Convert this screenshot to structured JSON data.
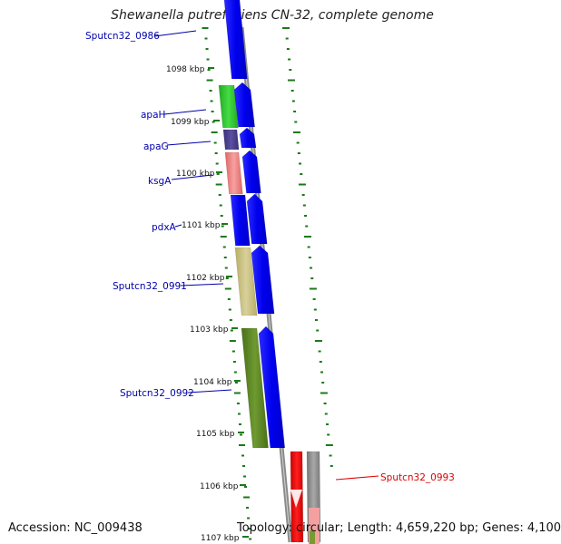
{
  "title": "Shewanella putrefaciens CN-32, complete genome",
  "accession": "Accession: NC_009438",
  "topology": "Topology: circular; Length: 4,659,220 bp; Genes: 4,100",
  "colors": {
    "blue_cds": "#0000ee",
    "label_blue": "#0000aa",
    "label_red": "#dd0000",
    "tick_green": "#1a7a1a",
    "backbone_gray": "#8a8a8a"
  },
  "ticks": [
    "1098 kbp",
    "1099 kbp",
    "1100 kbp",
    "1101 kbp",
    "1102 kbp",
    "1103 kbp",
    "1104 kbp",
    "1105 kbp",
    "1106 kbp",
    "1107 kbp"
  ],
  "gene_labels": [
    {
      "text": "Sputcn32_0986",
      "color": "label_blue"
    },
    {
      "text": "apaH",
      "color": "label_blue"
    },
    {
      "text": "apaG",
      "color": "label_blue"
    },
    {
      "text": "ksgA",
      "color": "label_blue"
    },
    {
      "text": "pdxA",
      "color": "label_blue"
    },
    {
      "text": "Sputcn32_0991",
      "color": "label_blue"
    },
    {
      "text": "Sputcn32_0992",
      "color": "label_blue"
    },
    {
      "text": "Sputcn32_0993",
      "color": "label_red"
    }
  ],
  "features": [
    {
      "name": "Sputcn32_0986",
      "color": "#0000ee"
    },
    {
      "name": "apaH",
      "color": "#33cc33"
    },
    {
      "name": "apaG",
      "color": "#4a3f8f"
    },
    {
      "name": "ksgA",
      "color": "#f08080"
    },
    {
      "name": "pdxA",
      "color": "#0000ee"
    },
    {
      "name": "Sputcn32_0991",
      "color": "#c9c07a"
    },
    {
      "name": "Sputcn32_0992",
      "color": "#5d8a22"
    },
    {
      "name": "Sputcn32_0993",
      "color": "#ee0000"
    }
  ]
}
